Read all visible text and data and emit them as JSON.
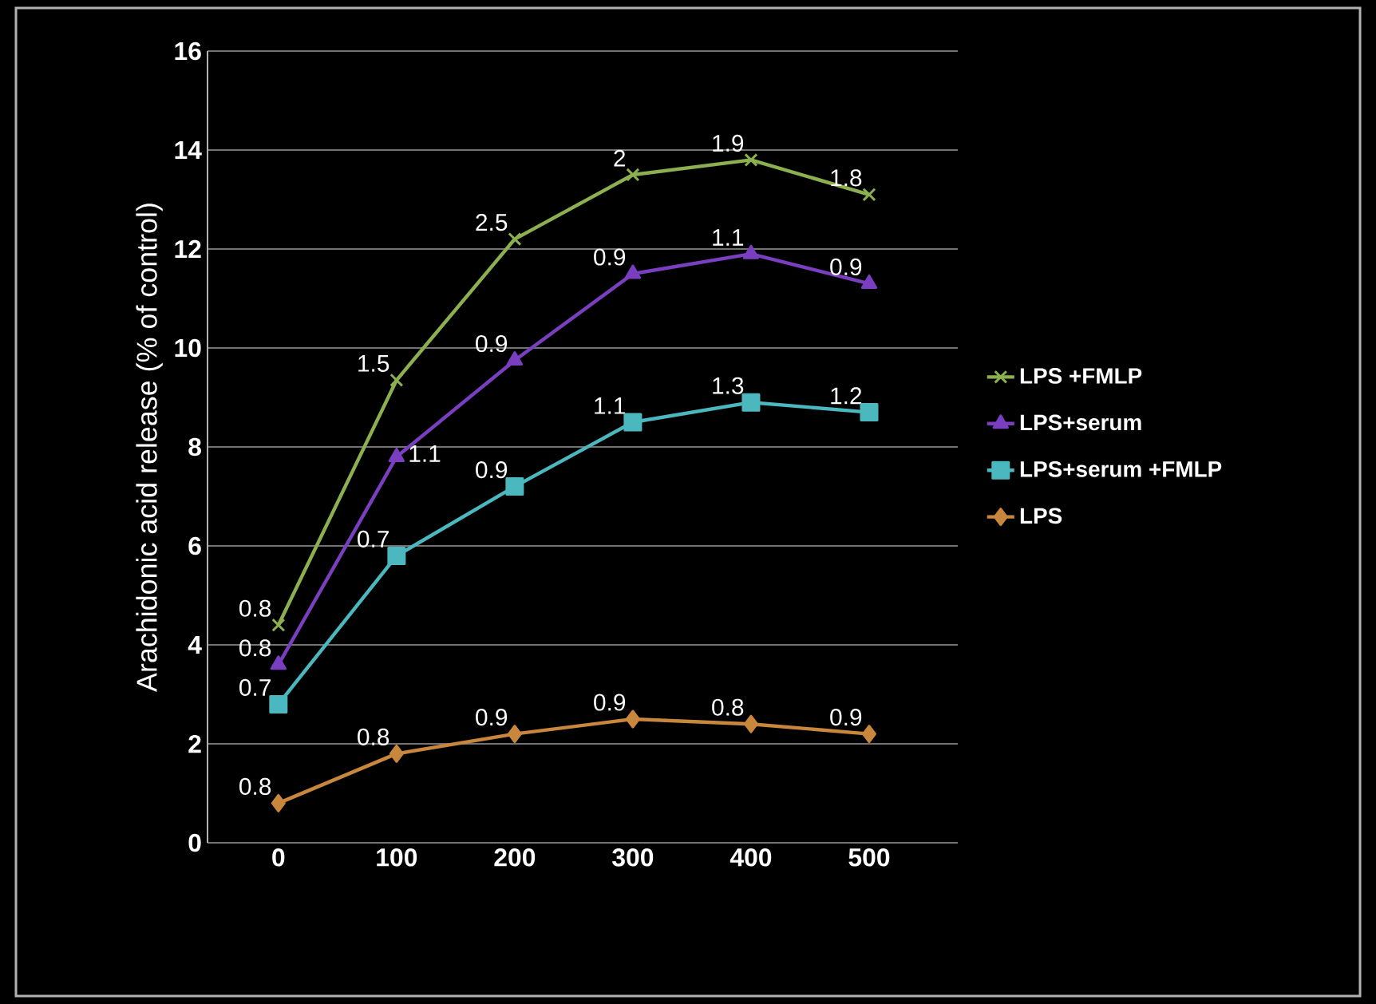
{
  "chart_data": {
    "type": "line",
    "ylabel": "Arachidonic acid release (% of control)",
    "categories": [
      "0",
      "100",
      "200",
      "300",
      "400",
      "500"
    ],
    "ylim": [
      0,
      16
    ],
    "yticks": [
      0,
      2,
      4,
      6,
      8,
      10,
      12,
      14,
      16
    ],
    "grid": "y",
    "legend": "right",
    "series": [
      {
        "name": "LPS +FMLP",
        "color": "#8cb050",
        "marker": "cross",
        "values": [
          4.4,
          9.35,
          12.2,
          13.5,
          13.8,
          13.1
        ]
      },
      {
        "name": "LPS+serum",
        "color": "#7a3fc0",
        "marker": "triangle",
        "values": [
          3.6,
          7.8,
          9.75,
          11.5,
          11.9,
          11.3
        ]
      },
      {
        "name": "LPS+serum +FMLP",
        "color": "#4bb8c0",
        "marker": "square",
        "values": [
          2.8,
          5.8,
          7.2,
          8.5,
          8.9,
          8.7
        ]
      },
      {
        "name": "LPS",
        "color": "#c8873c",
        "marker": "diamond",
        "values": [
          0.8,
          1.8,
          2.2,
          2.5,
          2.4,
          2.2
        ]
      }
    ],
    "annotations": [
      {
        "text": "0.8",
        "x": "0",
        "y": 4.4
      },
      {
        "text": "1.5",
        "x": "100",
        "y": 9.35
      },
      {
        "text": "2.5",
        "x": "200",
        "y": 12.2
      },
      {
        "text": "2",
        "x": "300",
        "y": 13.5
      },
      {
        "text": "1.9",
        "x": "400",
        "y": 13.8
      },
      {
        "text": "1.8",
        "x": "500",
        "y": 13.1
      },
      {
        "text": "0.8",
        "x": "0",
        "y": 3.6
      },
      {
        "text": "1.1",
        "x": "100",
        "y": 7.8
      },
      {
        "text": "0.9",
        "x": "200",
        "y": 9.75
      },
      {
        "text": "0.9",
        "x": "300",
        "y": 11.5
      },
      {
        "text": "1.1",
        "x": "400",
        "y": 11.9
      },
      {
        "text": "0.9",
        "x": "500",
        "y": 11.3
      },
      {
        "text": "0.7",
        "x": "0",
        "y": 2.8
      },
      {
        "text": "0.7",
        "x": "100",
        "y": 5.8
      },
      {
        "text": "0.9",
        "x": "200",
        "y": 7.2
      },
      {
        "text": "1.1",
        "x": "300",
        "y": 8.5
      },
      {
        "text": "1.3",
        "x": "400",
        "y": 8.9
      },
      {
        "text": "1.2",
        "x": "500",
        "y": 8.7
      },
      {
        "text": "0.8",
        "x": "0",
        "y": 0.8
      },
      {
        "text": "0.8",
        "x": "100",
        "y": 1.8
      },
      {
        "text": "0.9",
        "x": "200",
        "y": 2.2
      },
      {
        "text": "0.9",
        "x": "300",
        "y": 2.5
      },
      {
        "text": "0.8",
        "x": "400",
        "y": 2.4
      },
      {
        "text": "0.9",
        "x": "500",
        "y": 2.2
      }
    ]
  }
}
